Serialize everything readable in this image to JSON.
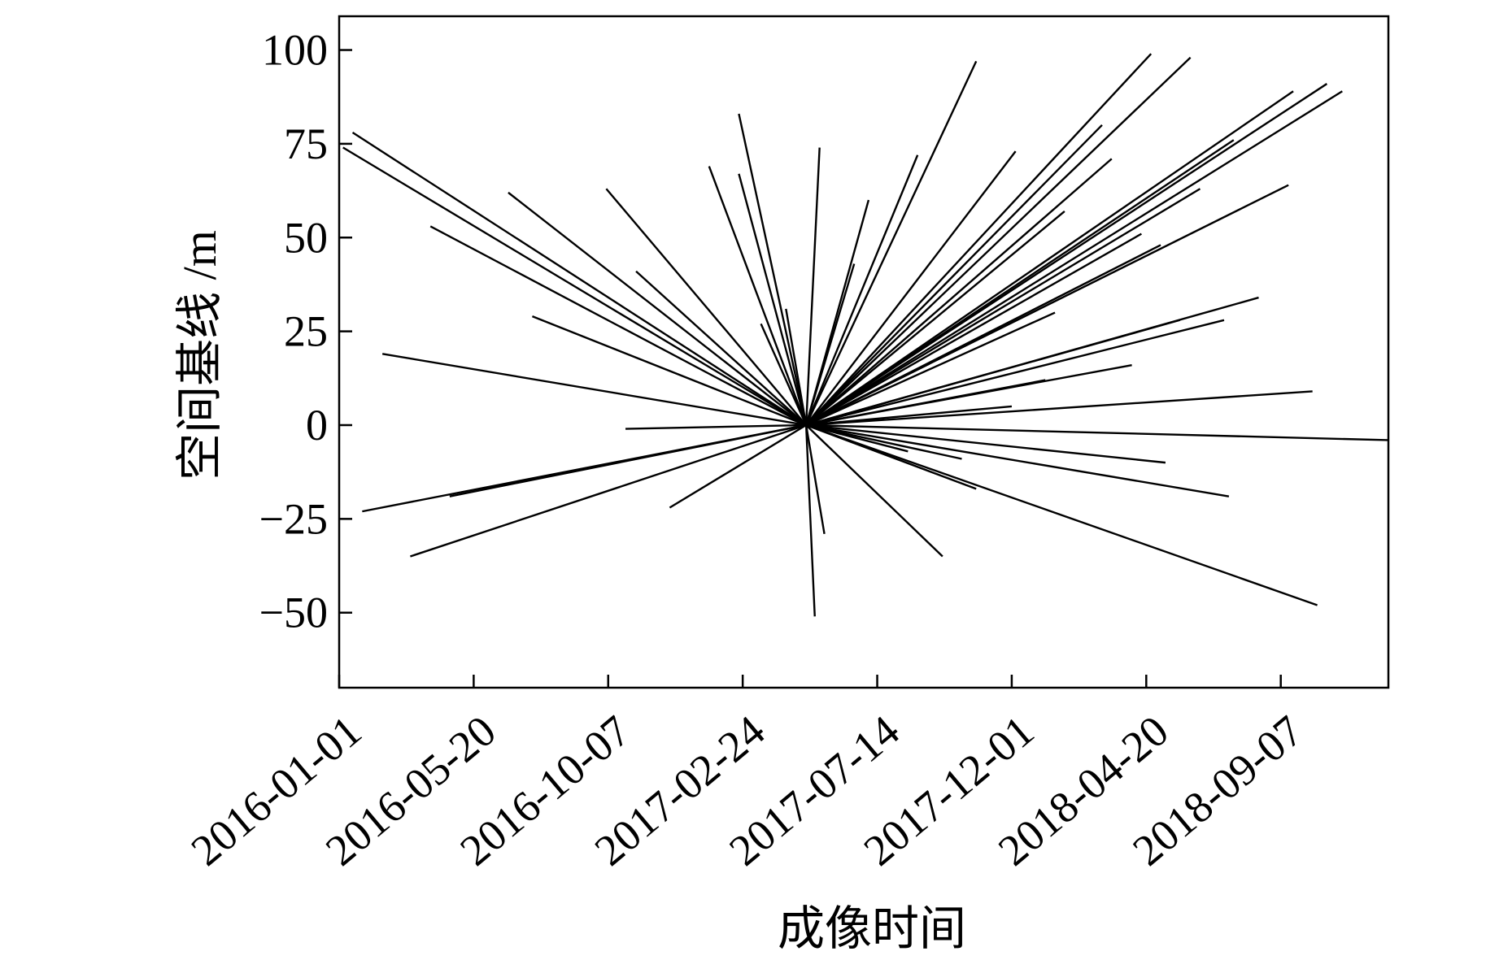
{
  "chart_data": {
    "type": "line",
    "title": "",
    "xlabel": "成像时间",
    "ylabel": "空间基线 /m",
    "x_ticks": [
      "2016-01-01",
      "2016-05-20",
      "2016-10-07",
      "2017-02-24",
      "2017-07-14",
      "2017-12-01",
      "2018-04-20",
      "2018-09-07"
    ],
    "y_ticks": [
      "100",
      "75",
      "50",
      "25",
      "0",
      "−25",
      "−50"
    ],
    "xlim": [
      "2016-01-01",
      "2018-12-28"
    ],
    "ylim": [
      -70,
      109
    ],
    "grid": false,
    "legend": "none",
    "master": {
      "date": "2017-05-01",
      "baseline_m": 0
    },
    "series_style": {
      "color": "#000000"
    },
    "segments": [
      {
        "date": "2016-01-05",
        "baseline_m": 74
      },
      {
        "date": "2016-01-15",
        "baseline_m": 78
      },
      {
        "date": "2016-04-05",
        "baseline_m": 53
      },
      {
        "date": "2016-06-25",
        "baseline_m": 62
      },
      {
        "date": "2016-10-05",
        "baseline_m": 63
      },
      {
        "date": "2016-11-05",
        "baseline_m": 41
      },
      {
        "date": "2016-07-20",
        "baseline_m": 29
      },
      {
        "date": "2016-02-15",
        "baseline_m": 19
      },
      {
        "date": "2016-10-25",
        "baseline_m": -1
      },
      {
        "date": "2016-01-25",
        "baseline_m": -23
      },
      {
        "date": "2016-03-15",
        "baseline_m": -35
      },
      {
        "date": "2016-04-25",
        "baseline_m": -19
      },
      {
        "date": "2016-12-10",
        "baseline_m": -22
      },
      {
        "date": "2017-01-20",
        "baseline_m": 69
      },
      {
        "date": "2017-02-20",
        "baseline_m": 67
      },
      {
        "date": "2017-02-20",
        "baseline_m": 83
      },
      {
        "date": "2017-03-15",
        "baseline_m": 27
      },
      {
        "date": "2017-04-10",
        "baseline_m": 31
      },
      {
        "date": "2017-05-15",
        "baseline_m": 74
      },
      {
        "date": "2017-06-20",
        "baseline_m": 43
      },
      {
        "date": "2017-07-05",
        "baseline_m": 60
      },
      {
        "date": "2017-08-25",
        "baseline_m": 72
      },
      {
        "date": "2017-10-25",
        "baseline_m": 97
      },
      {
        "date": "2017-12-05",
        "baseline_m": 73
      },
      {
        "date": "2018-01-25",
        "baseline_m": 57
      },
      {
        "date": "2018-03-05",
        "baseline_m": 80
      },
      {
        "date": "2018-03-15",
        "baseline_m": 71
      },
      {
        "date": "2018-04-25",
        "baseline_m": 99
      },
      {
        "date": "2018-06-05",
        "baseline_m": 98
      },
      {
        "date": "2018-06-15",
        "baseline_m": 63
      },
      {
        "date": "2018-07-20",
        "baseline_m": 76
      },
      {
        "date": "2018-09-20",
        "baseline_m": 89
      },
      {
        "date": "2018-10-25",
        "baseline_m": 91
      },
      {
        "date": "2018-11-10",
        "baseline_m": 89
      },
      {
        "date": "2018-09-15",
        "baseline_m": 64
      },
      {
        "date": "2018-04-15",
        "baseline_m": 51
      },
      {
        "date": "2018-05-05",
        "baseline_m": 48
      },
      {
        "date": "2018-01-15",
        "baseline_m": 30
      },
      {
        "date": "2018-05-25",
        "baseline_m": 28
      },
      {
        "date": "2018-08-15",
        "baseline_m": 34
      },
      {
        "date": "2018-07-10",
        "baseline_m": 28
      },
      {
        "date": "2018-04-05",
        "baseline_m": 16
      },
      {
        "date": "2018-01-05",
        "baseline_m": 12
      },
      {
        "date": "2017-12-01",
        "baseline_m": 5
      },
      {
        "date": "2018-10-10",
        "baseline_m": 9
      },
      {
        "date": "2018-12-28",
        "baseline_m": -4
      },
      {
        "date": "2018-05-10",
        "baseline_m": -10
      },
      {
        "date": "2018-07-15",
        "baseline_m": -19
      },
      {
        "date": "2018-10-15",
        "baseline_m": -48
      },
      {
        "date": "2017-10-10",
        "baseline_m": -9
      },
      {
        "date": "2017-10-25",
        "baseline_m": -17
      },
      {
        "date": "2017-09-20",
        "baseline_m": -35
      },
      {
        "date": "2017-05-20",
        "baseline_m": -29
      },
      {
        "date": "2017-05-10",
        "baseline_m": -51
      },
      {
        "date": "2017-08-15",
        "baseline_m": -7
      }
    ]
  }
}
